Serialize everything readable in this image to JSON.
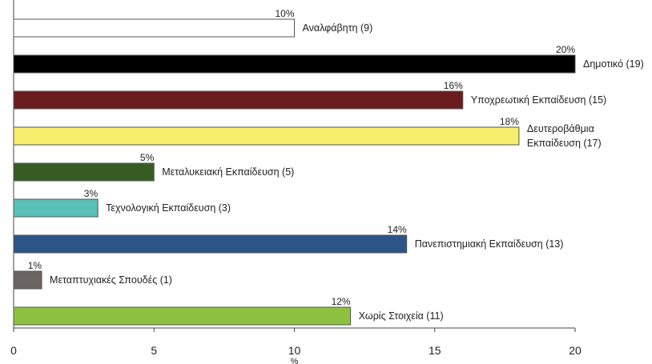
{
  "chart_data": {
    "type": "bar",
    "orientation": "horizontal",
    "title": "",
    "xlabel": "%",
    "ylabel": "",
    "xlim": [
      0,
      20
    ],
    "xticks": [
      0,
      5,
      10,
      15,
      20
    ],
    "grid": false,
    "bars": [
      {
        "label": "Αναλφάβητη (9)",
        "value": 10,
        "value_label": "10%",
        "color": "#ffffff"
      },
      {
        "label": "Δημοτικό (19)",
        "value": 20,
        "value_label": "20%",
        "color": "#000000"
      },
      {
        "label": "Υποχρεωτική Εκπαίδευση (15)",
        "value": 16,
        "value_label": "16%",
        "color": "#6b1c1f"
      },
      {
        "label": "Δευτεροβάθμια Εκπαίδευση (17)",
        "label_lines": [
          "Δευτεροβάθμια",
          "Εκπαίδευση (17)"
        ],
        "value": 18,
        "value_label": "18%",
        "color": "#f7ee6e"
      },
      {
        "label": "Μεταλυκειακή Εκπαίδευση (5)",
        "value": 5,
        "value_label": "5%",
        "color": "#375c23"
      },
      {
        "label": "Τεχνολογική Εκπαίδευση (3)",
        "value": 3,
        "value_label": "3%",
        "color": "#59bfb7"
      },
      {
        "label": "Πανεπιστημιακή Εκπαίδευση (13)",
        "value": 14,
        "value_label": "14%",
        "color": "#2d5486"
      },
      {
        "label": "Μεταπτυχιακές Σπουδές (1)",
        "value": 1,
        "value_label": "1%",
        "color": "#6a6463"
      },
      {
        "label": "Χωρίς Στοιχεία (11)",
        "value": 12,
        "value_label": "12%",
        "color": "#8dc13f"
      }
    ]
  }
}
